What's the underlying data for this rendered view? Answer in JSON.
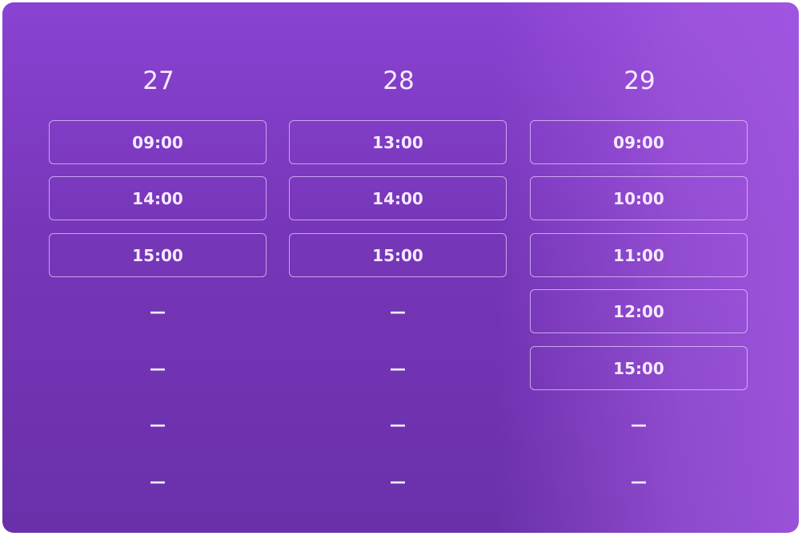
{
  "days": [
    {
      "label": "27",
      "slots": [
        "09:00",
        "14:00",
        "15:00",
        "—",
        "—",
        "—",
        "—"
      ],
      "available": [
        true,
        true,
        true,
        false,
        false,
        false,
        false
      ]
    },
    {
      "label": "28",
      "slots": [
        "13:00",
        "14:00",
        "15:00",
        "—",
        "—",
        "—",
        "—"
      ],
      "available": [
        true,
        true,
        true,
        false,
        false,
        false,
        false
      ]
    },
    {
      "label": "29",
      "slots": [
        "09:00",
        "10:00",
        "11:00",
        "12:00",
        "15:00",
        "—",
        "—"
      ],
      "available": [
        true,
        true,
        true,
        true,
        true,
        false,
        false
      ]
    }
  ],
  "colors": {
    "background_top": "#8a42d2",
    "background_bottom": "#6a30aa",
    "highlight_right": "#a55ae4",
    "slot_border": "#e6c8ff"
  }
}
